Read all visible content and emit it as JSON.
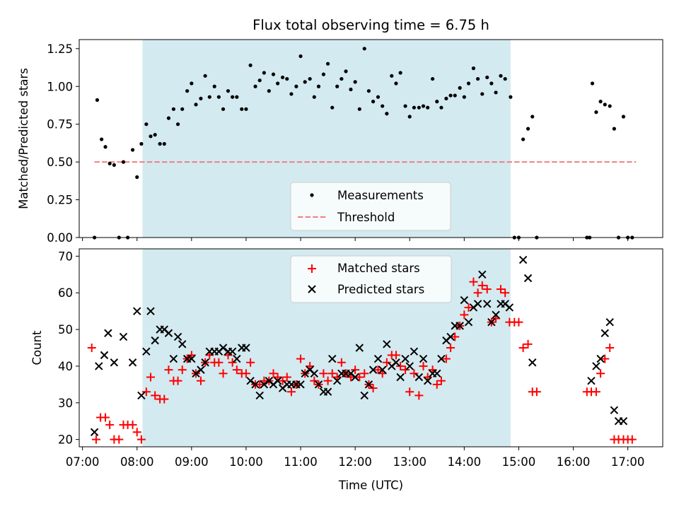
{
  "chart_data": [
    {
      "type": "scatter",
      "title": "Flux total observing time = 6.75 h",
      "ylabel": "Matched/Predicted stars",
      "xlabel": "",
      "xlim": [
        6.94,
        17.64
      ],
      "ylim": [
        0,
        1.31
      ],
      "yticks": [
        0,
        0.25,
        0.5,
        0.75,
        1.0,
        1.25
      ],
      "ytick_labels": [
        "0.00",
        "0.25",
        "0.50",
        "0.75",
        "1.00",
        "1.25"
      ],
      "shaded_span": {
        "start": 8.1,
        "end": 14.85,
        "color": "#d3eaf0"
      },
      "threshold": {
        "label": "Threshold",
        "value": 0.5,
        "x_start": 7.22,
        "x_end": 17.15,
        "color": "#f08080"
      },
      "legend_position": "lower-center",
      "series": [
        {
          "name": "Measurements",
          "color": "#000000",
          "x": [
            7.22,
            7.27,
            7.35,
            7.42,
            7.5,
            7.58,
            7.67,
            7.75,
            7.83,
            7.92,
            8.0,
            8.08,
            8.17,
            8.25,
            8.33,
            8.42,
            8.5,
            8.58,
            8.67,
            8.75,
            8.83,
            8.92,
            9.0,
            9.08,
            9.17,
            9.25,
            9.33,
            9.42,
            9.5,
            9.58,
            9.67,
            9.75,
            9.83,
            9.92,
            10.0,
            10.08,
            10.17,
            10.25,
            10.33,
            10.42,
            10.5,
            10.58,
            10.67,
            10.75,
            10.83,
            10.92,
            11.0,
            11.08,
            11.17,
            11.25,
            11.33,
            11.42,
            11.5,
            11.58,
            11.67,
            11.75,
            11.83,
            11.92,
            12.0,
            12.08,
            12.17,
            12.25,
            12.33,
            12.42,
            12.5,
            12.58,
            12.67,
            12.75,
            12.83,
            12.92,
            13.0,
            13.08,
            13.17,
            13.25,
            13.33,
            13.42,
            13.5,
            13.58,
            13.67,
            13.75,
            13.83,
            13.92,
            14.0,
            14.08,
            14.17,
            14.25,
            14.33,
            14.42,
            14.5,
            14.58,
            14.67,
            14.75,
            14.85,
            14.92,
            15.0,
            15.08,
            15.17,
            15.25,
            15.33,
            16.25,
            16.3,
            16.35,
            16.42,
            16.5,
            16.58,
            16.67,
            16.75,
            16.83,
            16.92,
            17.0,
            17.08
          ],
          "y": [
            0.0,
            0.91,
            0.65,
            0.6,
            0.49,
            0.48,
            0.0,
            0.5,
            0.0,
            0.58,
            0.4,
            0.62,
            0.75,
            0.67,
            0.68,
            0.62,
            0.62,
            0.79,
            0.85,
            0.75,
            0.85,
            0.97,
            1.02,
            0.88,
            0.92,
            1.07,
            0.93,
            1.0,
            0.93,
            0.85,
            0.97,
            0.93,
            0.93,
            0.85,
            0.85,
            1.14,
            1.0,
            1.04,
            1.09,
            0.97,
            1.08,
            1.02,
            1.06,
            1.05,
            0.95,
            1.0,
            1.2,
            1.03,
            1.05,
            0.93,
            1.0,
            1.08,
            1.15,
            0.86,
            1.0,
            1.05,
            1.1,
            0.98,
            1.03,
            0.85,
            1.25,
            0.97,
            0.9,
            0.93,
            0.87,
            0.82,
            1.07,
            1.02,
            1.09,
            0.87,
            0.8,
            0.86,
            0.86,
            0.87,
            0.86,
            1.05,
            0.9,
            0.86,
            0.92,
            0.94,
            0.94,
            0.99,
            0.93,
            1.02,
            1.12,
            1.05,
            0.95,
            1.06,
            1.02,
            0.96,
            1.07,
            1.05,
            0.93,
            0.0,
            0.0,
            0.65,
            0.72,
            0.8,
            0.0,
            0.0,
            0.0,
            1.02,
            0.83,
            0.9,
            0.88,
            0.87,
            0.72,
            0.0,
            0.8,
            0.0,
            0.0
          ]
        }
      ]
    },
    {
      "type": "scatter",
      "title": "",
      "ylabel": "Count",
      "xlabel": "Time (UTC)",
      "xlim": [
        6.94,
        17.64
      ],
      "ylim": [
        18,
        72
      ],
      "yticks": [
        20,
        30,
        40,
        50,
        60,
        70
      ],
      "ytick_labels": [
        "20",
        "30",
        "40",
        "50",
        "60",
        "70"
      ],
      "xticks": [
        7,
        8,
        9,
        10,
        11,
        12,
        13,
        14,
        15,
        16,
        17
      ],
      "xtick_labels": [
        "07:00",
        "08:00",
        "09:00",
        "10:00",
        "11:00",
        "12:00",
        "13:00",
        "14:00",
        "15:00",
        "16:00",
        "17:00"
      ],
      "shaded_span": {
        "start": 8.1,
        "end": 14.85,
        "color": "#d3eaf0"
      },
      "legend_position": "upper-center",
      "series": [
        {
          "name": "Matched stars",
          "marker": "plus",
          "color": "#ff0000",
          "x": [
            7.17,
            7.25,
            7.33,
            7.42,
            7.5,
            7.58,
            7.67,
            7.75,
            7.83,
            7.92,
            8.0,
            8.08,
            8.17,
            8.25,
            8.33,
            8.42,
            8.5,
            8.58,
            8.67,
            8.75,
            8.83,
            8.92,
            9.0,
            9.08,
            9.17,
            9.25,
            9.33,
            9.42,
            9.5,
            9.58,
            9.67,
            9.75,
            9.83,
            9.92,
            10.0,
            10.08,
            10.17,
            10.25,
            10.33,
            10.42,
            10.5,
            10.58,
            10.67,
            10.75,
            10.83,
            10.92,
            11.0,
            11.08,
            11.17,
            11.25,
            11.33,
            11.42,
            11.5,
            11.58,
            11.67,
            11.75,
            11.83,
            11.92,
            12.0,
            12.08,
            12.17,
            12.25,
            12.33,
            12.42,
            12.5,
            12.58,
            12.67,
            12.75,
            12.83,
            12.92,
            13.0,
            13.08,
            13.17,
            13.25,
            13.33,
            13.42,
            13.5,
            13.58,
            13.67,
            13.75,
            13.83,
            13.92,
            14.0,
            14.08,
            14.17,
            14.25,
            14.33,
            14.42,
            14.5,
            14.58,
            14.67,
            14.75,
            14.83,
            14.92,
            15.0,
            15.08,
            15.17,
            15.25,
            15.33,
            16.25,
            16.33,
            16.42,
            16.5,
            16.58,
            16.67,
            16.75,
            16.83,
            16.92,
            17.0,
            17.08
          ],
          "y": [
            45,
            20,
            26,
            26,
            24,
            20,
            20,
            24,
            24,
            24,
            22,
            20,
            33,
            37,
            32,
            31,
            31,
            39,
            36,
            36,
            39,
            42,
            43,
            38,
            36,
            41,
            43,
            41,
            41,
            38,
            43,
            41,
            39,
            38,
            38,
            41,
            35,
            35,
            36,
            36,
            38,
            37,
            36,
            37,
            33,
            35,
            42,
            38,
            40,
            36,
            35,
            38,
            36,
            38,
            37,
            41,
            38,
            37,
            39,
            37,
            38,
            35,
            34,
            39,
            38,
            41,
            43,
            43,
            40,
            39,
            33,
            38,
            32,
            40,
            37,
            39,
            35,
            36,
            42,
            45,
            48,
            51,
            54,
            56,
            63,
            60,
            62,
            61,
            52,
            53,
            61,
            60,
            52,
            52,
            52,
            45,
            46,
            33,
            33,
            33,
            33,
            33,
            38,
            42,
            45,
            20,
            20,
            20,
            20,
            20
          ],
          "legend_position": "upper-center"
        },
        {
          "name": "Predicted stars",
          "marker": "x",
          "color": "#000000",
          "x": [
            7.22,
            7.3,
            7.4,
            7.47,
            7.58,
            7.75,
            7.92,
            8.0,
            8.08,
            8.17,
            8.25,
            8.33,
            8.42,
            8.5,
            8.58,
            8.67,
            8.75,
            8.83,
            8.92,
            9.0,
            9.08,
            9.17,
            9.25,
            9.33,
            9.42,
            9.5,
            9.58,
            9.67,
            9.75,
            9.83,
            9.92,
            10.0,
            10.08,
            10.17,
            10.25,
            10.33,
            10.42,
            10.5,
            10.58,
            10.67,
            10.75,
            10.83,
            10.92,
            11.0,
            11.08,
            11.17,
            11.25,
            11.33,
            11.42,
            11.5,
            11.58,
            11.67,
            11.75,
            11.83,
            11.92,
            12.0,
            12.08,
            12.17,
            12.25,
            12.33,
            12.42,
            12.5,
            12.58,
            12.67,
            12.75,
            12.83,
            12.92,
            13.0,
            13.08,
            13.17,
            13.25,
            13.33,
            13.42,
            13.5,
            13.58,
            13.67,
            13.75,
            13.83,
            13.92,
            14.0,
            14.08,
            14.17,
            14.25,
            14.33,
            14.42,
            14.5,
            14.58,
            14.67,
            14.75,
            14.83,
            15.08,
            15.17,
            15.25,
            16.33,
            16.42,
            16.5,
            16.58,
            16.67,
            16.75,
            16.83,
            16.92
          ],
          "y": [
            22,
            40,
            43,
            49,
            41,
            48,
            41,
            55,
            32,
            44,
            55,
            47,
            50,
            50,
            49,
            42,
            48,
            46,
            42,
            42,
            38,
            39,
            41,
            44,
            44,
            44,
            45,
            44,
            44,
            42,
            45,
            45,
            36,
            35,
            32,
            35,
            36,
            35,
            36,
            34,
            35,
            35,
            35,
            35,
            38,
            39,
            38,
            35,
            33,
            33,
            42,
            36,
            38,
            38,
            38,
            37,
            45,
            32,
            35,
            39,
            42,
            39,
            46,
            40,
            41,
            37,
            42,
            40,
            44,
            37,
            42,
            36,
            38,
            38,
            42,
            47,
            48,
            51,
            51,
            58,
            52,
            56,
            57,
            65,
            57,
            52,
            54,
            57,
            57,
            56,
            69,
            64,
            41,
            36,
            40,
            42,
            49,
            52,
            28,
            25,
            25
          ]
        }
      ]
    }
  ]
}
